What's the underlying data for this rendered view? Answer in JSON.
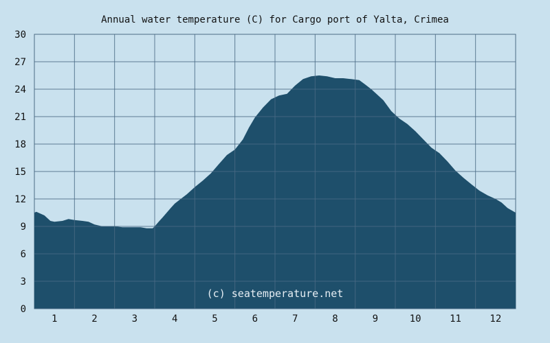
{
  "chart_data": {
    "type": "area",
    "title": "Annual water temperature (C) for Cargo port of Yalta, Crimea",
    "xlabel": "",
    "ylabel": "",
    "x_ticks": [
      "1",
      "2",
      "3",
      "4",
      "5",
      "6",
      "7",
      "8",
      "9",
      "10",
      "11",
      "12"
    ],
    "y_ticks": [
      "0",
      "3",
      "6",
      "9",
      "12",
      "15",
      "18",
      "21",
      "24",
      "27",
      "30"
    ],
    "ylim": [
      0,
      30
    ],
    "xlim": [
      0.5,
      12.5
    ],
    "grid": true,
    "fill_color": "#1e4f6b",
    "grid_color": "#4a6a84",
    "background": "#c9e1ee",
    "watermark": "(c) seatemperature.net",
    "series": [
      {
        "x": [
          0.5,
          0.55,
          0.75,
          0.9,
          1.0,
          1.2,
          1.35,
          1.5,
          1.7,
          1.85,
          2.0,
          2.2,
          2.35,
          2.5,
          2.7,
          2.85,
          3.0,
          3.15,
          3.3,
          3.45,
          3.5,
          3.6,
          3.7,
          3.8,
          3.9,
          4.0,
          4.15,
          4.3,
          4.5,
          4.7,
          4.9,
          5.1,
          5.3,
          5.5,
          5.7,
          5.85,
          6.0,
          6.2,
          6.4,
          6.6,
          6.8,
          7.0,
          7.2,
          7.4,
          7.6,
          7.8,
          8.0,
          8.2,
          8.4,
          8.6,
          8.75,
          8.9,
          9.0,
          9.2,
          9.4,
          9.6,
          9.8,
          10.0,
          10.2,
          10.4,
          10.6,
          10.8,
          11.0,
          11.2,
          11.4,
          11.6,
          11.8,
          12.0,
          12.15,
          12.3,
          12.5
        ],
        "y": [
          10.5,
          10.6,
          10.2,
          9.6,
          9.5,
          9.6,
          9.8,
          9.7,
          9.6,
          9.5,
          9.2,
          9.0,
          9.0,
          9.0,
          8.9,
          8.9,
          8.9,
          8.9,
          8.8,
          8.8,
          9.0,
          9.5,
          10.0,
          10.5,
          11.0,
          11.5,
          12.0,
          12.5,
          13.3,
          14.0,
          14.8,
          15.8,
          16.8,
          17.4,
          18.5,
          19.8,
          20.9,
          22.0,
          22.9,
          23.3,
          23.5,
          24.4,
          25.1,
          25.4,
          25.5,
          25.4,
          25.2,
          25.2,
          25.1,
          25.0,
          24.5,
          24.0,
          23.6,
          22.8,
          21.6,
          20.8,
          20.2,
          19.4,
          18.5,
          17.6,
          17.0,
          16.1,
          15.1,
          14.3,
          13.6,
          12.9,
          12.4,
          12.0,
          11.6,
          11.0,
          10.5
        ]
      }
    ]
  }
}
